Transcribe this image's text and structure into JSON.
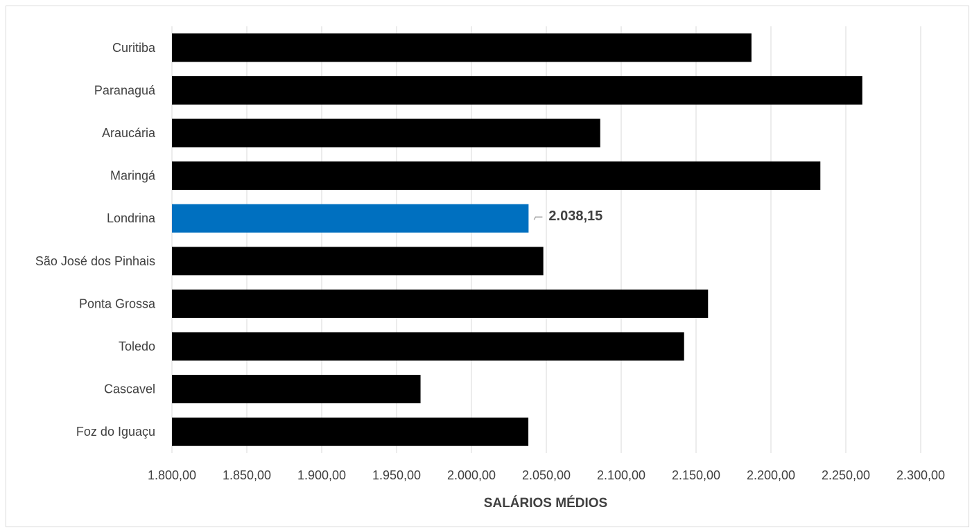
{
  "chart_data": {
    "type": "bar",
    "orientation": "horizontal",
    "title": "",
    "xlabel": "SALÁRIOS MÉDIOS",
    "ylabel": "",
    "categories": [
      "Curitiba",
      "Paranaguá",
      "Araucária",
      "Maringá",
      "Londrina",
      "São José dos Pinhais",
      "Ponta Grossa",
      "Toledo",
      "Cascavel",
      "Foz do Iguaçu"
    ],
    "values": [
      2187,
      2261,
      2086,
      2233,
      2038.15,
      2048,
      2158,
      2142,
      1966,
      2038
    ],
    "xlim": [
      1800,
      2300
    ],
    "xticks": [
      "1.800,00",
      "1.850,00",
      "1.900,00",
      "1.950,00",
      "2.000,00",
      "2.050,00",
      "2.100,00",
      "2.150,00",
      "2.200,00",
      "2.250,00",
      "2.300,00"
    ],
    "grid": "vertical",
    "legend": "none",
    "highlight": {
      "category": "Londrina",
      "label": "2.038,15"
    },
    "colors": {
      "bar": "#000000",
      "highlight": "#0070c0",
      "grid": "#d9d9d9",
      "text": "#404040"
    }
  }
}
